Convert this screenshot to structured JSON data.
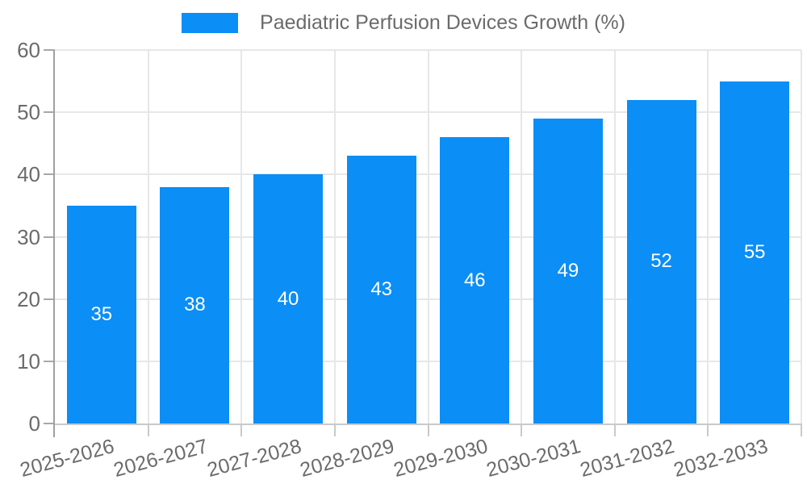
{
  "legend": {
    "label": "Paediatric Perfusion Devices Growth (%)"
  },
  "chart_data": {
    "type": "bar",
    "title": "Paediatric Perfusion Devices Growth (%)",
    "categories": [
      "2025-2026",
      "2026-2027",
      "2027-2028",
      "2028-2029",
      "2029-2030",
      "2030-2031",
      "2031-2032",
      "2032-2033"
    ],
    "values": [
      35,
      38,
      40,
      43,
      46,
      49,
      52,
      55
    ],
    "series": [
      {
        "name": "Paediatric Perfusion Devices Growth (%)",
        "values": [
          35,
          38,
          40,
          43,
          46,
          49,
          52,
          55
        ]
      }
    ],
    "xlabel": "",
    "ylabel": "",
    "ylim": [
      0,
      60
    ],
    "yticks": [
      0,
      10,
      20,
      30,
      40,
      50,
      60
    ],
    "grid": true,
    "legend_position": "top",
    "bar_color": "#0b8ef5",
    "value_label_color": "#ffffff",
    "axis_text_color": "#6b6b6b"
  }
}
